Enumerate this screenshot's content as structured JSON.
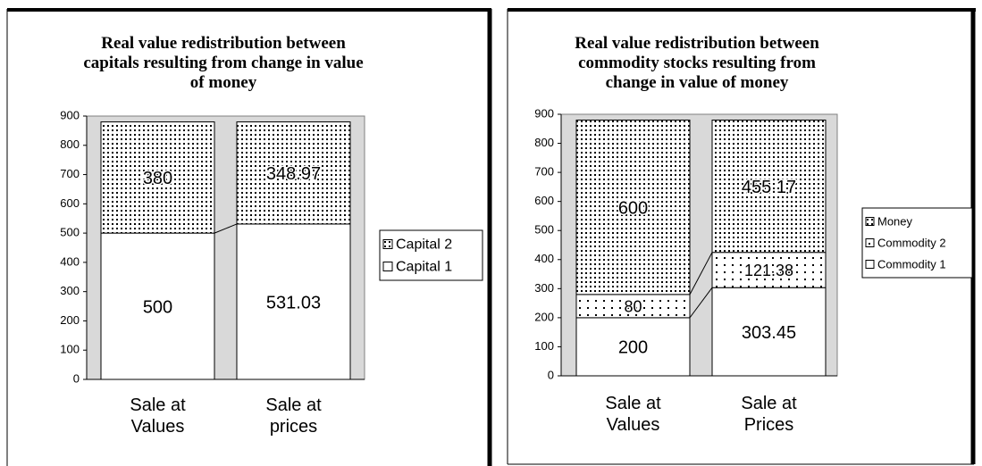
{
  "chart_data": [
    {
      "type": "bar",
      "stacked": true,
      "title": "Real value redistribution between capitals resulting from change in value of money",
      "categories": [
        "Sale at Values",
        "Sale at prices"
      ],
      "series": [
        {
          "name": "Capital 1",
          "color": "#ffffff",
          "pattern": "none",
          "values": [
            500,
            531.03
          ]
        },
        {
          "name": "Capital 2",
          "color": "#ffffff",
          "pattern": "dots",
          "values": [
            380,
            348.97
          ]
        }
      ],
      "ylim": [
        0,
        900
      ],
      "yticks": [
        0,
        100,
        200,
        300,
        400,
        500,
        600,
        700,
        800,
        900
      ],
      "legend": "right",
      "plot_background": "#d9d9d9"
    },
    {
      "type": "bar",
      "stacked": true,
      "title": "Real value redistribution between commodity  stocks resulting from change in value of money",
      "categories": [
        "Sale at Values",
        "Sale at Prices"
      ],
      "series": [
        {
          "name": "Commodity 1",
          "color": "#ffffff",
          "pattern": "none",
          "values": [
            200,
            303.45
          ]
        },
        {
          "name": "Commodity 2",
          "color": "#ffffff",
          "pattern": "sparse-dots",
          "values": [
            80,
            121.38
          ]
        },
        {
          "name": "Money",
          "color": "#ffffff",
          "pattern": "dots",
          "values": [
            600,
            455.17
          ]
        }
      ],
      "ylim": [
        0,
        900
      ],
      "yticks": [
        0,
        100,
        200,
        300,
        400,
        500,
        600,
        700,
        800,
        900
      ],
      "legend": "right",
      "plot_background": "#d9d9d9"
    }
  ]
}
